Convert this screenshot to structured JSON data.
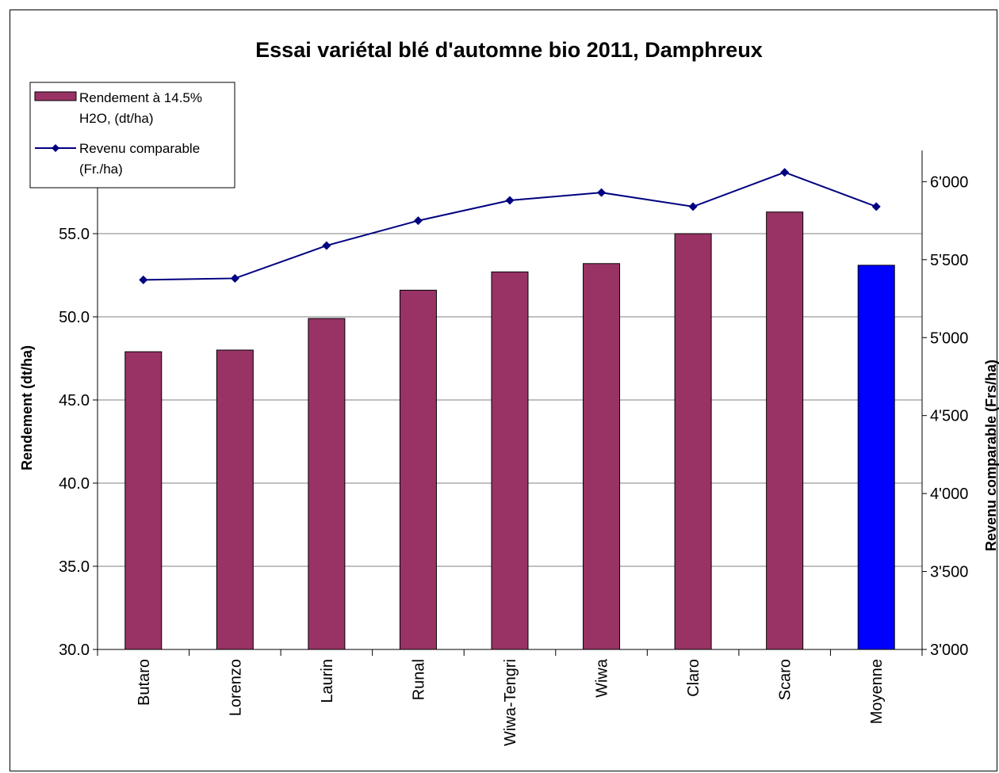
{
  "chart_data": {
    "type": "bar",
    "title": "Essai variétal blé d'automne bio 2011, Damphreux",
    "categories": [
      "Butaro",
      "Lorenzo",
      "Laurin",
      "Runal",
      "Wiwa-Tengri",
      "Wiwa",
      "Claro",
      "Scaro",
      "Moyenne"
    ],
    "series": [
      {
        "name_lines": [
          "Rendement à 14.5%",
          "H2O, (dt/ha)"
        ],
        "kind": "bar",
        "axis": "left",
        "values": [
          47.9,
          48.0,
          49.9,
          51.6,
          52.7,
          53.2,
          55.0,
          56.3,
          53.1
        ],
        "color": "#993366",
        "highlight": {
          "index": 8,
          "color": "#0000FF"
        }
      },
      {
        "name_lines": [
          "Revenu comparable",
          "(Fr./ha)"
        ],
        "kind": "line",
        "axis": "right",
        "values": [
          5370,
          5380,
          5590,
          5750,
          5880,
          5930,
          5840,
          6060,
          5840
        ],
        "color": "#000080",
        "marker": "diamond"
      }
    ],
    "y_left": {
      "label": "Rendement (dt/ha)",
      "ylim": [
        30.0,
        60.0
      ],
      "ticks": [
        30.0,
        35.0,
        40.0,
        45.0,
        50.0,
        55.0
      ],
      "tick_labels": [
        "30.0",
        "35.0",
        "40.0",
        "45.0",
        "50.0",
        "55.0"
      ]
    },
    "y_right": {
      "label": "Revenu comparable (Frs/ha)",
      "ylim": [
        3000,
        6200
      ],
      "ticks": [
        3000,
        3500,
        4000,
        4500,
        5000,
        5500,
        6000
      ],
      "tick_labels": [
        "3'000",
        "3'500",
        "4'000",
        "4'500",
        "5'000",
        "5'500",
        "6'000"
      ]
    },
    "grid": true,
    "legend_position": "top-left"
  }
}
